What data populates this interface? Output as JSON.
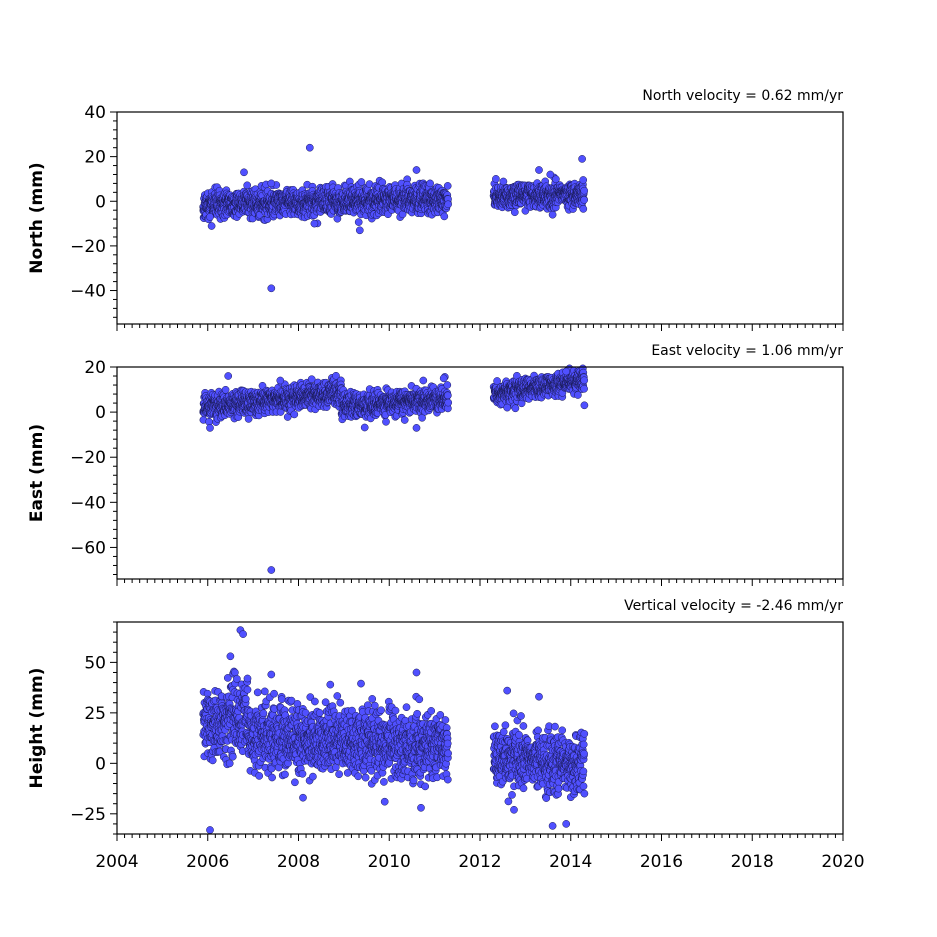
{
  "chart_data": [
    {
      "type": "scatter",
      "title": "North velocity = 0.62 mm/yr",
      "ylabel": "North (mm)",
      "xlim": [
        2004,
        2020
      ],
      "ylim": [
        -55,
        40
      ],
      "yticks": [
        40,
        20,
        0,
        -20,
        -40
      ],
      "ytick_labels": [
        "40",
        "20",
        "0",
        "−20",
        "−40"
      ],
      "x_tick_labels_shown": false,
      "marker_color": "#5050ff",
      "segments": [
        {
          "x_start": 2005.9,
          "x_end": 2011.3,
          "y_start": -1.5,
          "y_end": 1.6,
          "spread": 3.0
        },
        {
          "x_start": 2012.3,
          "x_end": 2014.3,
          "y_start": 2.2,
          "y_end": 3.4,
          "spread": 2.5
        }
      ],
      "outliers": [
        {
          "x": 2008.25,
          "y": 24
        },
        {
          "x": 2007.4,
          "y": -39
        },
        {
          "x": 2014.25,
          "y": 19
        },
        {
          "x": 2010.6,
          "y": 14
        },
        {
          "x": 2009.35,
          "y": -13
        },
        {
          "x": 2013.3,
          "y": 14
        },
        {
          "x": 2006.8,
          "y": 13
        },
        {
          "x": 2008.35,
          "y": -10
        },
        {
          "x": 2012.35,
          "y": 10
        },
        {
          "x": 2013.6,
          "y": -6
        },
        {
          "x": 2006.05,
          "y": -7
        },
        {
          "x": 2013.55,
          "y": 12
        },
        {
          "x": 2007.4,
          "y": 8
        },
        {
          "x": 2010.9,
          "y": 8
        }
      ]
    },
    {
      "type": "scatter",
      "title": "East velocity = 1.06 mm/yr",
      "ylabel": "East (mm)",
      "xlim": [
        2004,
        2020
      ],
      "ylim": [
        -74,
        20
      ],
      "yticks": [
        20,
        0,
        -20,
        -40,
        -60
      ],
      "ytick_labels": [
        "20",
        "0",
        "−20",
        "−40",
        "−60"
      ],
      "x_tick_labels_shown": false,
      "marker_color": "#5050ff",
      "segments": [
        {
          "x_start": 2005.9,
          "x_end": 2008.95,
          "y_start": 2.0,
          "y_end": 9.0,
          "spread": 2.6
        },
        {
          "x_start": 2008.95,
          "x_end": 2011.3,
          "y_start": 2.5,
          "y_end": 6.0,
          "spread": 2.6
        },
        {
          "x_start": 2012.3,
          "x_end": 2014.3,
          "y_start": 8.0,
          "y_end": 14.5,
          "spread": 2.2
        }
      ],
      "outliers": [
        {
          "x": 2007.4,
          "y": -70
        },
        {
          "x": 2006.05,
          "y": -7
        },
        {
          "x": 2010.6,
          "y": -7
        },
        {
          "x": 2006.45,
          "y": 16
        },
        {
          "x": 2011.2,
          "y": 15
        },
        {
          "x": 2014.3,
          "y": 3
        },
        {
          "x": 2012.6,
          "y": 2
        },
        {
          "x": 2007.6,
          "y": 14
        },
        {
          "x": 2013.9,
          "y": 18
        },
        {
          "x": 2010.75,
          "y": 14
        },
        {
          "x": 2006.9,
          "y": -3
        }
      ]
    },
    {
      "type": "scatter",
      "title": "Vertical velocity = -2.46 mm/yr",
      "ylabel": "Height (mm)",
      "xlim": [
        2004,
        2020
      ],
      "ylim": [
        -35,
        70
      ],
      "yticks": [
        50,
        25,
        0,
        -25
      ],
      "ytick_labels": [
        "50",
        "25",
        "0",
        "−25"
      ],
      "x_tick_labels_shown": true,
      "xticks": [
        2004,
        2006,
        2008,
        2010,
        2012,
        2014,
        2016,
        2018,
        2020
      ],
      "xtick_labels": [
        "2004",
        "2006",
        "2008",
        "2010",
        "2012",
        "2014",
        "2016",
        "2018",
        "2020"
      ],
      "marker_color": "#5050ff",
      "segments": [
        {
          "x_start": 2005.9,
          "x_end": 2006.9,
          "y_start": 18.0,
          "y_end": 24.0,
          "spread": 9.0
        },
        {
          "x_start": 2006.9,
          "x_end": 2011.3,
          "y_start": 14.0,
          "y_end": 8.0,
          "spread": 8.0
        },
        {
          "x_start": 2012.3,
          "x_end": 2014.3,
          "y_start": 2.0,
          "y_end": 0.0,
          "spread": 7.0
        }
      ],
      "outliers": [
        {
          "x": 2006.72,
          "y": 66
        },
        {
          "x": 2006.78,
          "y": 64
        },
        {
          "x": 2006.5,
          "y": 53
        },
        {
          "x": 2010.6,
          "y": 45
        },
        {
          "x": 2007.4,
          "y": 44
        },
        {
          "x": 2008.7,
          "y": 39
        },
        {
          "x": 2012.6,
          "y": 36
        },
        {
          "x": 2013.3,
          "y": 33
        },
        {
          "x": 2006.05,
          "y": -33
        },
        {
          "x": 2013.6,
          "y": -31
        },
        {
          "x": 2013.9,
          "y": -30
        },
        {
          "x": 2010.7,
          "y": -22
        },
        {
          "x": 2012.75,
          "y": -23
        },
        {
          "x": 2008.1,
          "y": -17
        },
        {
          "x": 2014.3,
          "y": -15
        },
        {
          "x": 2009.9,
          "y": -19
        }
      ]
    }
  ]
}
